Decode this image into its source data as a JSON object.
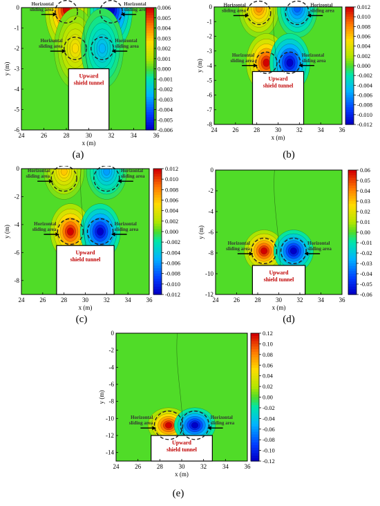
{
  "chart_data": [
    {
      "type": "heatmap",
      "panel_label": "(a)",
      "xlabel": "x (m)",
      "ylabel": "y (m)",
      "xlim": [
        24,
        36
      ],
      "ylim": [
        -6,
        0
      ],
      "x_ticks": [
        24,
        26,
        28,
        30,
        32,
        34,
        36
      ],
      "y_ticks": [
        0,
        -1,
        -2,
        -3,
        -4,
        -5,
        -6
      ],
      "colorbar_ticks": [
        0.006,
        0.005,
        0.004,
        0.003,
        0.002,
        0.001,
        0.0,
        -0.001,
        -0.002,
        -0.003,
        -0.004,
        -0.005,
        -0.006
      ],
      "colorbar_labels": [
        "0.006",
        "0.005",
        "0.004",
        "0.003",
        "0.002",
        "0.001",
        "0.000",
        "-0.001",
        "-0.002",
        "-0.003",
        "-0.004",
        "-0.005",
        "-0.006"
      ],
      "vmin": -0.006,
      "vmax": 0.006,
      "tunnel": {
        "label": "Upward shield tunnel",
        "x": [
          28.2,
          31.8
        ],
        "y": [
          -6,
          -3.0
        ]
      },
      "sliding_areas": [
        {
          "label": "Horizontal sliding area",
          "cx": 28,
          "cy": -0.2,
          "r": 1.0
        },
        {
          "label": "Horizontal sliding area",
          "cx": 32,
          "cy": -0.2,
          "r": 1.0
        },
        {
          "label": "Horizontal sliding area",
          "cx": 28.8,
          "cy": -2.0,
          "r": 1.0
        },
        {
          "label": "Horizontal sliding area",
          "cx": 31.2,
          "cy": -2.0,
          "r": 1.0
        }
      ],
      "hotspots": [
        {
          "cx": 28,
          "cy": -0.1,
          "value": 0.006
        },
        {
          "cx": 32,
          "cy": -0.1,
          "value": -0.006
        },
        {
          "cx": 28.8,
          "cy": -2.0,
          "value": 0.0025
        },
        {
          "cx": 31.2,
          "cy": -2.0,
          "value": -0.0025
        }
      ]
    },
    {
      "type": "heatmap",
      "panel_label": "(b)",
      "xlabel": "x (m)",
      "ylabel": "y (m)",
      "xlim": [
        24,
        36
      ],
      "ylim": [
        -8,
        0
      ],
      "x_ticks": [
        24,
        26,
        28,
        30,
        32,
        34,
        36
      ],
      "y_ticks": [
        0,
        -1,
        -2,
        -3,
        -4,
        -5,
        -6,
        -7,
        -8
      ],
      "colorbar_ticks": [
        0.012,
        0.01,
        0.008,
        0.006,
        0.004,
        0.002,
        0.0,
        -0.002,
        -0.004,
        -0.006,
        -0.008,
        -0.01,
        -0.012
      ],
      "colorbar_labels": [
        "0.012",
        "0.010",
        "0.008",
        "0.006",
        "0.004",
        "0.002",
        "0.000",
        "-0.002",
        "-0.004",
        "-0.006",
        "-0.008",
        "-0.010",
        "-0.012"
      ],
      "vmin": -0.012,
      "vmax": 0.012,
      "tunnel": {
        "label": "Upward shield tunnel",
        "x": [
          27.6,
          32.4
        ],
        "y": [
          -8,
          -4.4
        ]
      },
      "sliding_areas": [
        {
          "label": "Horizontal sliding area",
          "cx": 28.2,
          "cy": -0.4,
          "r": 1.1
        },
        {
          "label": "Horizontal sliding area",
          "cx": 31.8,
          "cy": -0.4,
          "r": 1.1
        },
        {
          "label": "Horizontal sliding area",
          "cx": 28.9,
          "cy": -3.8,
          "r": 1.0
        },
        {
          "label": "Horizontal sliding area",
          "cx": 31.1,
          "cy": -3.8,
          "r": 1.0
        }
      ],
      "hotspots": [
        {
          "cx": 28.2,
          "cy": -0.1,
          "value": 0.008
        },
        {
          "cx": 31.8,
          "cy": -0.1,
          "value": -0.008
        },
        {
          "cx": 28.9,
          "cy": -3.8,
          "value": 0.012
        },
        {
          "cx": 31.1,
          "cy": -3.8,
          "value": -0.012
        }
      ]
    },
    {
      "type": "heatmap",
      "panel_label": "(c)",
      "xlabel": "x (m)",
      "ylabel": "y (m)",
      "xlim": [
        24,
        36
      ],
      "ylim": [
        -9,
        0
      ],
      "x_ticks": [
        24,
        26,
        28,
        30,
        32,
        34,
        36
      ],
      "y_ticks": [
        0,
        -2,
        -4,
        -6,
        -8
      ],
      "colorbar_ticks": [
        0.012,
        0.01,
        0.008,
        0.006,
        0.004,
        0.002,
        0.0,
        -0.002,
        -0.004,
        -0.006,
        -0.008,
        -0.01,
        -0.012
      ],
      "colorbar_labels": [
        "0.012",
        "0.010",
        "0.008",
        "0.006",
        "0.004",
        "0.002",
        "0.000",
        "-0.002",
        "-0.004",
        "-0.006",
        "-0.008",
        "-0.010",
        "-0.012"
      ],
      "vmin": -0.012,
      "vmax": 0.012,
      "tunnel": {
        "label": "Upward shield tunnel",
        "x": [
          27.3,
          32.7
        ],
        "y": [
          -9,
          -5.5
        ]
      },
      "sliding_areas": [
        {
          "label": "Horizontal sliding area",
          "cx": 28.0,
          "cy": -0.7,
          "r": 1.2
        },
        {
          "label": "Horizontal sliding area",
          "cx": 32.0,
          "cy": -0.7,
          "r": 1.2
        },
        {
          "label": "Horizontal sliding area",
          "cx": 28.6,
          "cy": -4.5,
          "r": 1.2
        },
        {
          "label": "Horizontal sliding area",
          "cx": 31.4,
          "cy": -4.5,
          "r": 1.2
        }
      ],
      "hotspots": [
        {
          "cx": 28.0,
          "cy": -0.2,
          "value": 0.006
        },
        {
          "cx": 32.0,
          "cy": -0.2,
          "value": -0.006
        },
        {
          "cx": 28.6,
          "cy": -4.5,
          "value": 0.012
        },
        {
          "cx": 31.4,
          "cy": -4.5,
          "value": -0.012
        }
      ]
    },
    {
      "type": "heatmap",
      "panel_label": "(d)",
      "xlabel": "x (m)",
      "ylabel": "y (m)",
      "xlim": [
        24,
        36
      ],
      "ylim": [
        -12,
        0
      ],
      "x_ticks": [
        24,
        26,
        28,
        30,
        32,
        34,
        36
      ],
      "y_ticks": [
        0,
        -2,
        -4,
        -6,
        -8,
        -10,
        -12
      ],
      "colorbar_ticks": [
        0.06,
        0.05,
        0.04,
        0.03,
        0.02,
        0.01,
        0.0,
        -0.01,
        -0.02,
        -0.03,
        -0.04,
        -0.05,
        -0.06
      ],
      "colorbar_labels": [
        "0.06",
        "0.05",
        "0.04",
        "0.03",
        "0.02",
        "0.01",
        "0.00",
        "-0.01",
        "-0.02",
        "-0.03",
        "-0.04",
        "-0.05",
        "-0.06"
      ],
      "vmin": -0.06,
      "vmax": 0.06,
      "tunnel": {
        "label": "Upward shield tunnel",
        "x": [
          27.5,
          32.5
        ],
        "y": [
          -12,
          -9.2
        ]
      },
      "sliding_areas": [
        {
          "label": "Horizontal sliding area",
          "cx": 28.6,
          "cy": -7.8,
          "r": 1.2
        },
        {
          "label": "Horizontal sliding area",
          "cx": 31.4,
          "cy": -7.8,
          "r": 1.2
        }
      ],
      "hotspots": [
        {
          "cx": 28.6,
          "cy": -7.8,
          "value": 0.06
        },
        {
          "cx": 31.4,
          "cy": -7.8,
          "value": -0.06
        }
      ]
    },
    {
      "type": "heatmap",
      "panel_label": "(e)",
      "xlabel": "x (m)",
      "ylabel": "y (m)",
      "xlim": [
        24,
        36
      ],
      "ylim": [
        -15,
        0
      ],
      "x_ticks": [
        24,
        26,
        28,
        30,
        32,
        34,
        36
      ],
      "y_ticks": [
        0,
        -2,
        -4,
        -6,
        -8,
        -10,
        -12,
        -14
      ],
      "colorbar_ticks": [
        0.12,
        0.1,
        0.08,
        0.06,
        0.04,
        0.02,
        0.0,
        -0.02,
        -0.04,
        -0.06,
        -0.08,
        -0.1,
        -0.12
      ],
      "colorbar_labels": [
        "0.12",
        "0.10",
        "0.08",
        "0.06",
        "0.04",
        "0.02",
        "0.00",
        "-0.02",
        "-0.04",
        "-0.06",
        "-0.08",
        "-0.10",
        "-0.12"
      ],
      "vmin": -0.12,
      "vmax": 0.12,
      "tunnel": {
        "label": "Upward shield tunnel",
        "x": [
          27.2,
          32.8
        ],
        "y": [
          -15,
          -12.0
        ]
      },
      "sliding_areas": [
        {
          "label": "Horizontal sliding area",
          "cx": 28.8,
          "cy": -10.8,
          "r": 1.3
        },
        {
          "label": "Horizontal sliding area",
          "cx": 31.2,
          "cy": -10.8,
          "r": 1.3
        }
      ],
      "hotspots": [
        {
          "cx": 28.8,
          "cy": -10.8,
          "value": 0.12
        },
        {
          "cx": 31.2,
          "cy": -10.8,
          "value": -0.12
        }
      ]
    }
  ]
}
